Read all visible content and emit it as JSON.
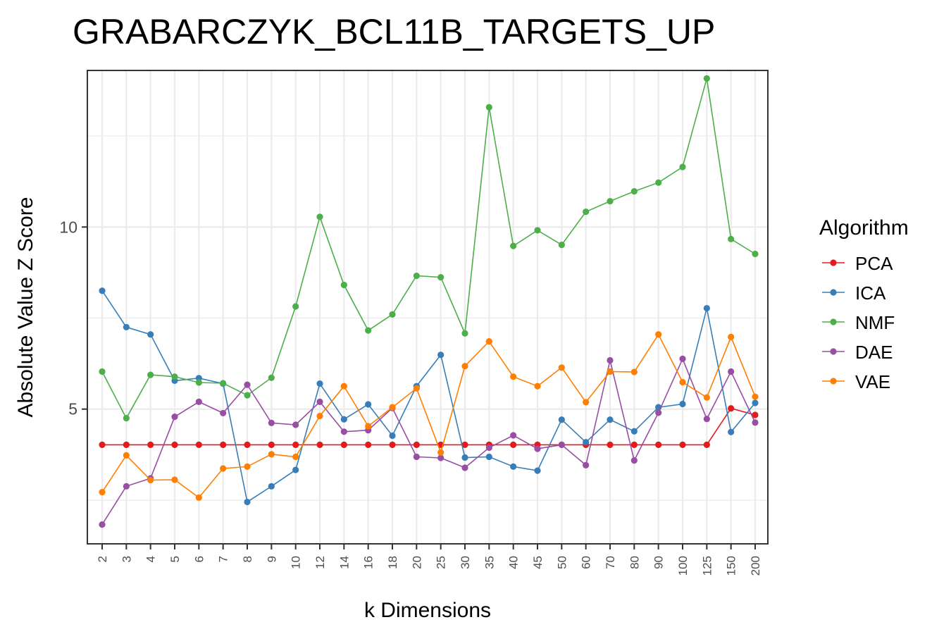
{
  "chart_data": {
    "type": "line",
    "title": "GRABARCZYK_BCL11B_TARGETS_UP",
    "xlabel": "k Dimensions",
    "ylabel": "Absolute Value Z Score",
    "categories": [
      "2",
      "3",
      "4",
      "5",
      "6",
      "7",
      "8",
      "9",
      "10",
      "12",
      "14",
      "16",
      "18",
      "20",
      "25",
      "30",
      "35",
      "40",
      "45",
      "50",
      "60",
      "70",
      "80",
      "90",
      "100",
      "125",
      "150",
      "200"
    ],
    "ylim": [
      1.3,
      14.3
    ],
    "yticks": [
      5,
      10
    ],
    "grid": true,
    "legend": {
      "title": "Algorithm",
      "position": "right"
    },
    "series": [
      {
        "name": "PCA",
        "color": "#E41A1C",
        "values": [
          4.02,
          4.02,
          4.02,
          4.02,
          4.02,
          4.02,
          4.02,
          4.02,
          4.02,
          4.02,
          4.02,
          4.02,
          4.02,
          4.02,
          4.02,
          4.02,
          4.02,
          4.02,
          4.02,
          4.02,
          4.02,
          4.02,
          4.02,
          4.02,
          4.02,
          4.02,
          5.02,
          4.84
        ]
      },
      {
        "name": "ICA",
        "color": "#377EB8",
        "values": [
          8.25,
          7.25,
          7.05,
          5.78,
          5.85,
          5.7,
          2.45,
          2.88,
          3.33,
          5.7,
          4.72,
          5.13,
          4.27,
          5.63,
          6.49,
          3.67,
          3.69,
          3.42,
          3.31,
          4.71,
          4.09,
          4.71,
          4.39,
          5.05,
          5.14,
          7.77,
          4.37,
          5.17
        ]
      },
      {
        "name": "NMF",
        "color": "#4DAF4A",
        "values": [
          6.03,
          4.75,
          5.94,
          5.89,
          5.73,
          5.71,
          5.38,
          5.86,
          7.82,
          10.28,
          8.41,
          7.16,
          7.6,
          8.66,
          8.62,
          7.08,
          13.29,
          9.48,
          9.91,
          9.51,
          10.42,
          10.71,
          10.98,
          11.22,
          11.65,
          14.08,
          9.67,
          9.26
        ]
      },
      {
        "name": "DAE",
        "color": "#984EA3",
        "values": [
          1.83,
          2.88,
          3.1,
          4.79,
          5.2,
          4.89,
          5.67,
          4.62,
          4.57,
          5.2,
          4.38,
          4.42,
          5.03,
          3.69,
          3.66,
          3.39,
          3.94,
          4.28,
          3.91,
          4.02,
          3.46,
          6.34,
          3.59,
          4.9,
          6.38,
          4.73,
          6.03,
          4.63
        ]
      },
      {
        "name": "VAE",
        "color": "#FF7F00",
        "values": [
          2.72,
          3.73,
          3.05,
          3.06,
          2.57,
          3.37,
          3.42,
          3.76,
          3.69,
          4.81,
          5.63,
          4.53,
          5.05,
          5.57,
          3.81,
          6.18,
          6.86,
          5.89,
          5.63,
          6.14,
          5.19,
          6.03,
          6.02,
          7.05,
          5.74,
          5.32,
          6.98,
          5.34
        ]
      }
    ]
  }
}
